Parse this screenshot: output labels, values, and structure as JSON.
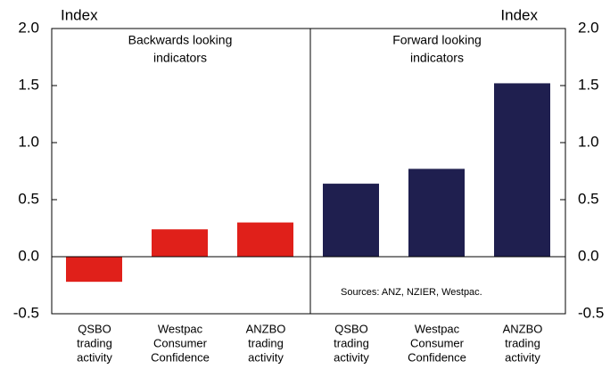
{
  "chart_data": {
    "type": "bar",
    "y_label": "Index",
    "y2_label": "Index",
    "categories": [
      [
        "QSBO",
        "trading",
        "activity"
      ],
      [
        "Westpac",
        "Consumer",
        "Confidence"
      ],
      [
        "ANZBO",
        "trading",
        "activity"
      ],
      [
        "QSBO",
        "trading",
        "activity"
      ],
      [
        "Westpac",
        "Consumer",
        "Confidence"
      ],
      [
        "ANZBO",
        "trading",
        "activity"
      ]
    ],
    "values": [
      -0.22,
      0.24,
      0.3,
      0.64,
      0.77,
      1.52
    ],
    "colors": [
      "#e0201a",
      "#e0201a",
      "#e0201a",
      "#1f1f4f",
      "#1f1f4f",
      "#1f1f4f"
    ],
    "groups": [
      [
        "Backwards looking",
        "indicators"
      ],
      [
        "Forward looking",
        "indicators"
      ]
    ],
    "source": "Sources: ANZ, NZIER, Westpac.",
    "ylim": [
      -0.5,
      2.0
    ],
    "yticks": [
      {
        "value": -0.5,
        "label": "-0.5"
      },
      {
        "value": 0,
        "label": "0.0"
      },
      {
        "value": 0.5,
        "label": "0.5"
      },
      {
        "value": 1,
        "label": "1.0"
      },
      {
        "value": 1.5,
        "label": "1.5"
      },
      {
        "value": 2,
        "label": "2.0"
      }
    ],
    "y2lim": [
      -0.5,
      2.0
    ],
    "y2ticks": [
      {
        "value": -0.5,
        "label": "-0.5"
      },
      {
        "value": 0,
        "label": "0.0"
      },
      {
        "value": 0.5,
        "label": "0.5"
      },
      {
        "value": 1,
        "label": "1.0"
      },
      {
        "value": 1.5,
        "label": "1.5"
      },
      {
        "value": 2,
        "label": "2.0"
      }
    ]
  }
}
